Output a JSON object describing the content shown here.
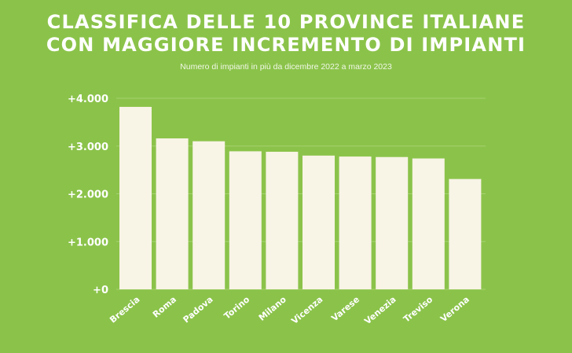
{
  "title_lines": [
    "CLASSIFICA DELLE 10 PROVINCE ITALIANE",
    "CON MAGGIORE INCREMENTO DI IMPIANTI"
  ],
  "subtitle": "Numero di impianti in più da dicembre 2022 a marzo 2023",
  "colors": {
    "background": "#8bc34a",
    "bar": "#f8f4e6",
    "gridline": "#a5d26f",
    "text": "#ffffff"
  },
  "chart_data": {
    "type": "bar",
    "title": "CLASSIFICA DELLE 10 PROVINCE ITALIANE CON MAGGIORE INCREMENTO DI IMPIANTI",
    "subtitle": "Numero di impianti in più da dicembre 2022 a marzo 2023",
    "xlabel": "",
    "ylabel": "",
    "categories": [
      "Brescia",
      "Roma",
      "Padova",
      "Torino",
      "Milano",
      "Vicenza",
      "Varese",
      "Venezia",
      "Treviso",
      "Verona"
    ],
    "values": [
      3820,
      3160,
      3100,
      2890,
      2880,
      2800,
      2780,
      2770,
      2740,
      2310
    ],
    "ylim": [
      0,
      4000
    ],
    "yticks": [
      0,
      1000,
      2000,
      3000,
      4000
    ],
    "ytick_labels": [
      "+0",
      "+1.000",
      "+2.000",
      "+3.000",
      "+4.000"
    ],
    "grid": true,
    "legend": "none"
  }
}
